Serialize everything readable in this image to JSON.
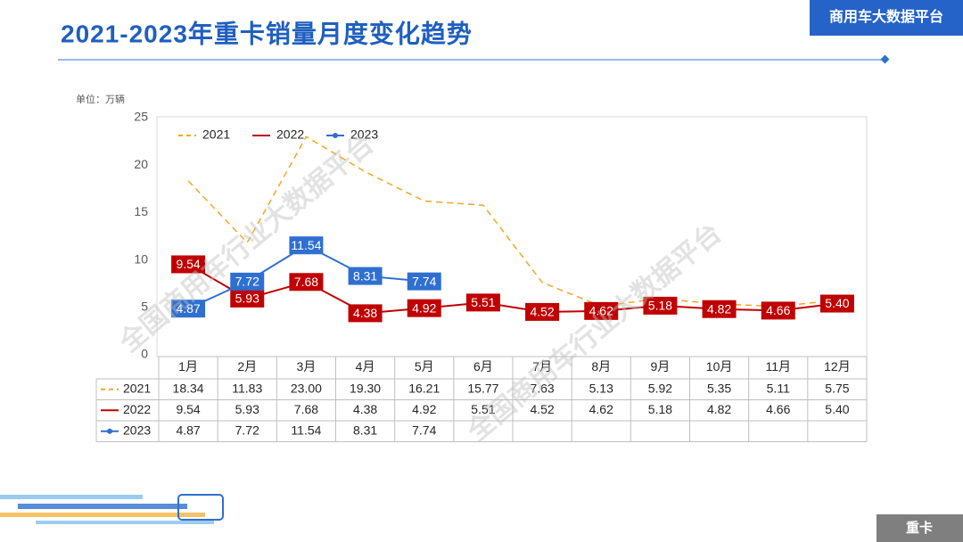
{
  "header": {
    "title": "2021-2023年重卡销量月度变化趋势",
    "brand": "商用车大数据平台"
  },
  "footer": {
    "tag": "重卡"
  },
  "watermark": "全国商用车行业大数据平台",
  "chart_data": {
    "type": "line",
    "unit": "单位：万辆",
    "categories": [
      "1月",
      "2月",
      "3月",
      "4月",
      "5月",
      "6月",
      "7月",
      "8月",
      "9月",
      "10月",
      "11月",
      "12月"
    ],
    "ylim": [
      0,
      25
    ],
    "yticks": [
      0,
      5,
      10,
      15,
      20,
      25
    ],
    "grid": false,
    "legend": "top-left",
    "series": [
      {
        "name": "2021",
        "color": "#f5a623",
        "dashed": true,
        "markers": false,
        "data_labels": false,
        "values": [
          18.34,
          11.83,
          23.0,
          19.3,
          16.21,
          15.77,
          7.63,
          5.13,
          5.92,
          5.35,
          5.11,
          5.75
        ],
        "value_labels": [
          "18.34",
          "11.83",
          "23.00",
          "19.30",
          "16.21",
          "15.77",
          "7.63",
          "5.13",
          "5.92",
          "5.35",
          "5.11",
          "5.75"
        ]
      },
      {
        "name": "2022",
        "color": "#c00000",
        "dashed": false,
        "markers": false,
        "data_labels": true,
        "values": [
          9.54,
          5.93,
          7.68,
          4.38,
          4.92,
          5.51,
          4.52,
          4.62,
          5.18,
          4.82,
          4.66,
          5.4
        ],
        "value_labels": [
          "9.54",
          "5.93",
          "7.68",
          "4.38",
          "4.92",
          "5.51",
          "4.52",
          "4.62",
          "5.18",
          "4.82",
          "4.66",
          "5.40"
        ]
      },
      {
        "name": "2023",
        "color": "#2f6fd0",
        "dashed": false,
        "markers": true,
        "data_labels": true,
        "values": [
          4.87,
          7.72,
          11.54,
          8.31,
          7.74,
          null,
          null,
          null,
          null,
          null,
          null,
          null
        ],
        "value_labels": [
          "4.87",
          "7.72",
          "11.54",
          "8.31",
          "7.74",
          null,
          null,
          null,
          null,
          null,
          null,
          null
        ]
      }
    ]
  }
}
